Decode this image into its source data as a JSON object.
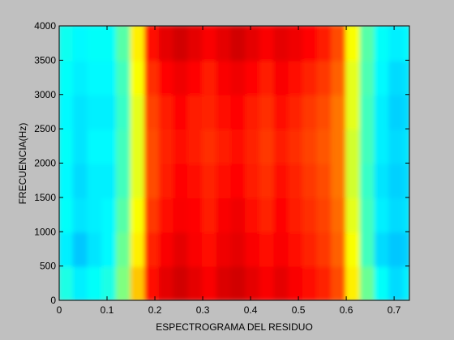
{
  "chart_data": {
    "type": "heatmap",
    "xlabel": "ESPECTROGRAMA DEL RESIDUO",
    "ylabel": "FRECUENCIA(Hz)",
    "colormap": "jet",
    "zlim": [
      0,
      1
    ],
    "xlim": [
      0,
      0.732
    ],
    "ylim": [
      0,
      4000
    ],
    "xticks": [
      0,
      0.1,
      0.2,
      0.3,
      0.4,
      0.5,
      0.6,
      0.7
    ],
    "yticks": [
      0,
      500,
      1000,
      1500,
      2000,
      2500,
      3000,
      3500,
      4000
    ],
    "x_edges": [
      0,
      0.03,
      0.06,
      0.09,
      0.12,
      0.15,
      0.18,
      0.21,
      0.24,
      0.27,
      0.3,
      0.33,
      0.36,
      0.39,
      0.42,
      0.45,
      0.48,
      0.51,
      0.54,
      0.57,
      0.6,
      0.63,
      0.66,
      0.69,
      0.72,
      0.732
    ],
    "y_edges": [
      0,
      500,
      1000,
      1500,
      2000,
      2500,
      3000,
      3500,
      4000
    ],
    "z": [
      [
        0.4,
        0.36,
        0.38,
        0.4,
        0.5,
        0.68,
        0.86,
        0.9,
        0.92,
        0.9,
        0.88,
        0.91,
        0.92,
        0.9,
        0.88,
        0.9,
        0.88,
        0.86,
        0.84,
        0.8,
        0.64,
        0.48,
        0.38,
        0.34,
        0.36
      ],
      [
        0.36,
        0.32,
        0.35,
        0.37,
        0.48,
        0.64,
        0.84,
        0.88,
        0.9,
        0.88,
        0.86,
        0.89,
        0.9,
        0.88,
        0.86,
        0.88,
        0.86,
        0.84,
        0.82,
        0.78,
        0.62,
        0.44,
        0.34,
        0.32,
        0.33
      ],
      [
        0.38,
        0.35,
        0.36,
        0.37,
        0.46,
        0.62,
        0.82,
        0.86,
        0.88,
        0.87,
        0.85,
        0.88,
        0.89,
        0.86,
        0.84,
        0.87,
        0.85,
        0.83,
        0.81,
        0.77,
        0.6,
        0.44,
        0.36,
        0.34,
        0.35
      ],
      [
        0.37,
        0.34,
        0.36,
        0.36,
        0.44,
        0.6,
        0.8,
        0.85,
        0.87,
        0.86,
        0.84,
        0.86,
        0.87,
        0.85,
        0.83,
        0.86,
        0.84,
        0.82,
        0.8,
        0.76,
        0.58,
        0.43,
        0.35,
        0.33,
        0.34
      ],
      [
        0.38,
        0.35,
        0.37,
        0.37,
        0.44,
        0.6,
        0.8,
        0.84,
        0.86,
        0.85,
        0.83,
        0.85,
        0.86,
        0.84,
        0.82,
        0.85,
        0.83,
        0.81,
        0.79,
        0.76,
        0.58,
        0.44,
        0.36,
        0.34,
        0.35
      ],
      [
        0.37,
        0.35,
        0.36,
        0.36,
        0.43,
        0.6,
        0.81,
        0.85,
        0.87,
        0.85,
        0.84,
        0.86,
        0.87,
        0.85,
        0.83,
        0.86,
        0.84,
        0.82,
        0.8,
        0.76,
        0.6,
        0.44,
        0.36,
        0.33,
        0.34
      ],
      [
        0.38,
        0.36,
        0.37,
        0.37,
        0.44,
        0.62,
        0.83,
        0.87,
        0.89,
        0.87,
        0.85,
        0.88,
        0.89,
        0.87,
        0.85,
        0.88,
        0.86,
        0.84,
        0.82,
        0.78,
        0.6,
        0.45,
        0.37,
        0.34,
        0.35
      ],
      [
        0.39,
        0.37,
        0.38,
        0.38,
        0.46,
        0.64,
        0.86,
        0.9,
        0.92,
        0.9,
        0.88,
        0.9,
        0.92,
        0.9,
        0.88,
        0.9,
        0.89,
        0.87,
        0.85,
        0.8,
        0.62,
        0.46,
        0.38,
        0.36,
        0.37
      ]
    ]
  }
}
